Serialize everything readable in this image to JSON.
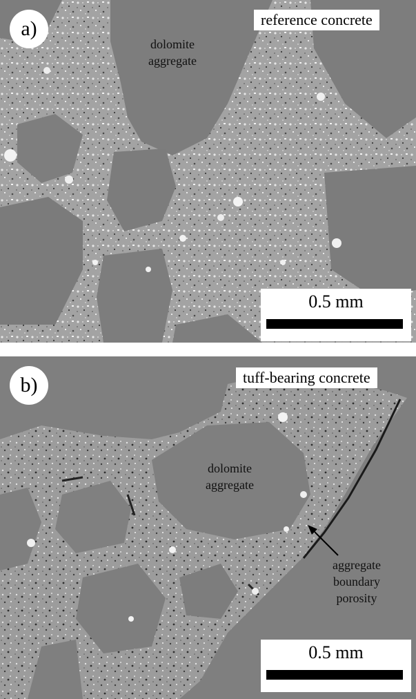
{
  "panel_a": {
    "label": "a)",
    "title": "reference concrete",
    "annotation_line1": "dolomite",
    "annotation_line2": "aggregate",
    "scale_label": "0.5 mm"
  },
  "panel_b": {
    "label": "b)",
    "title": "tuff-bearing concrete",
    "annotation_line1": "dolomite",
    "annotation_line2": "aggregate",
    "pointer_line1": "aggregate",
    "pointer_line2": "boundary",
    "pointer_line3": "porosity",
    "scale_label": "0.5 mm"
  }
}
